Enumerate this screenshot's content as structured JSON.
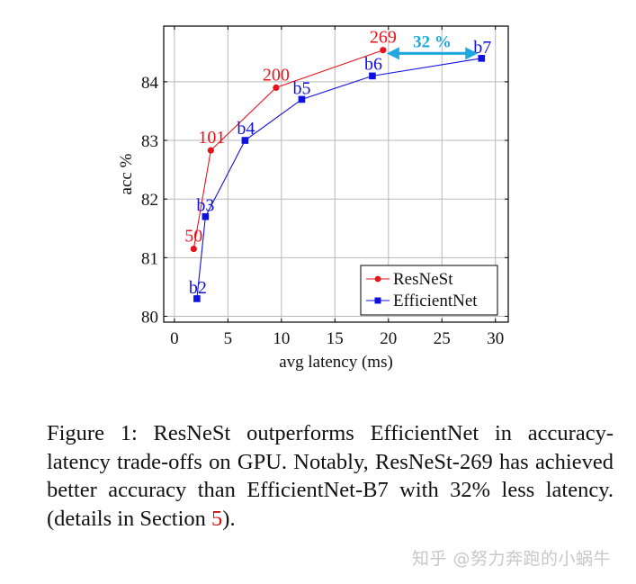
{
  "chart_data": {
    "type": "line",
    "title": "",
    "xlabel": "avg latency (ms)",
    "ylabel": "acc %",
    "xlim": [
      -1,
      31.2
    ],
    "ylim": [
      79.9,
      84.95
    ],
    "xticks": [
      0,
      5,
      10,
      15,
      20,
      25,
      30
    ],
    "yticks": [
      80,
      81,
      82,
      83,
      84
    ],
    "grid": true,
    "legend_position": "lower right",
    "series": [
      {
        "name": "ResNeSt",
        "color": "#e8141c",
        "marker": "circle",
        "points": [
          {
            "label": "50",
            "x": 1.8,
            "y": 81.15
          },
          {
            "label": "101",
            "x": 3.4,
            "y": 82.83
          },
          {
            "label": "200",
            "x": 9.5,
            "y": 83.9
          },
          {
            "label": "269",
            "x": 19.5,
            "y": 84.54
          }
        ]
      },
      {
        "name": "EfficientNet",
        "color": "#1010e0",
        "marker": "square",
        "points": [
          {
            "label": "b2",
            "x": 2.1,
            "y": 80.3
          },
          {
            "label": "b3",
            "x": 2.9,
            "y": 81.7
          },
          {
            "label": "b4",
            "x": 6.6,
            "y": 83.0
          },
          {
            "label": "b5",
            "x": 11.9,
            "y": 83.7
          },
          {
            "label": "b6",
            "x": 18.5,
            "y": 84.1
          },
          {
            "label": "b7",
            "x": 28.7,
            "y": 84.4
          }
        ]
      }
    ],
    "annotations": [
      {
        "type": "double-arrow",
        "text": "32 %",
        "from": [
          19.5,
          84.5
        ],
        "to": [
          28.7,
          84.5
        ],
        "color": "#1ea8df"
      }
    ]
  },
  "caption": {
    "prefix": "Figure 1: ResNeSt outperforms EfficientNet in accuracy-latency trade-offs on GPU. Notably, ResNeSt-269 has achieved better accuracy than EfficientNet-B7 with 32% less latency. (details in Section ",
    "ref": "5",
    "suffix": ")."
  },
  "watermark": "知乎 @努力奔跑的小蜗牛"
}
